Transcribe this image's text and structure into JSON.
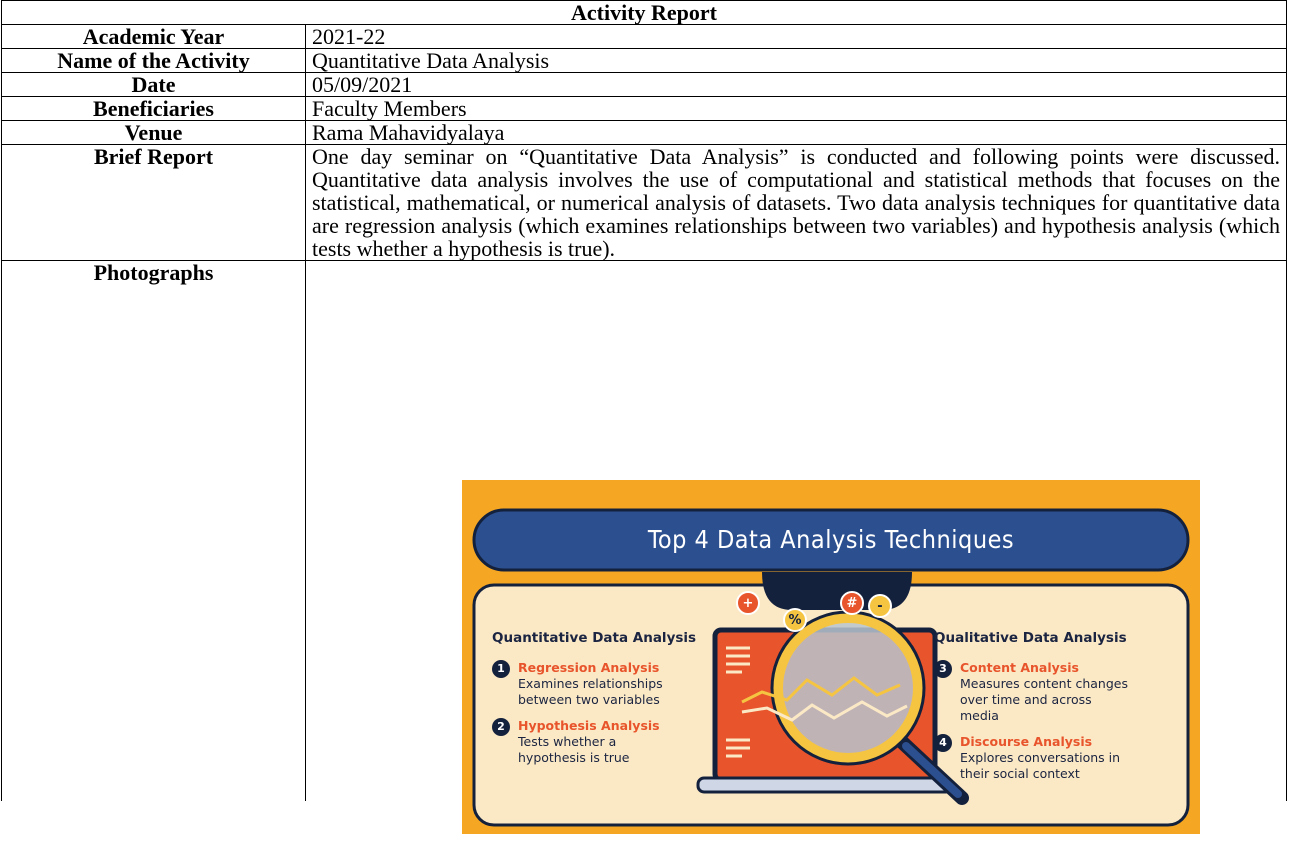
{
  "document": {
    "title": "Activity Report",
    "rows": [
      {
        "label": "Academic Year",
        "value": "2021-22"
      },
      {
        "label": "Name of the Activity",
        "value": "Quantitative Data Analysis"
      },
      {
        "label": "Date",
        "value": "05/09/2021"
      },
      {
        "label": "Beneficiaries",
        "value": "Faculty Members"
      },
      {
        "label": "Venue",
        "value": "Rama Mahavidyalaya"
      },
      {
        "label": "Brief Report",
        "value": "One day seminar on “Quantitative Data Analysis” is conducted and following points were discussed. Quantitative data analysis involves the use of computational and statistical methods that focuses on the statistical, mathematical, or numerical analysis of datasets. Two data analysis techniques for quantitative data are regression analysis (which examines relationships between two variables) and hypothesis analysis (which tests whether a hypothesis is true)."
      }
    ],
    "photographs_label": "Photographs",
    "infographic": {
      "title": "Top 4 Data Analysis Techniques",
      "icons": [
        "+",
        "%",
        "#",
        "-"
      ],
      "left": {
        "heading": "Quantitative Data Analysis",
        "items": [
          {
            "number": "1",
            "title": "Regression Analysis",
            "text": "Examines relationships between two variables"
          },
          {
            "number": "2",
            "title": "Hypothesis Analysis",
            "text": "Tests whether a hypothesis is true"
          }
        ]
      },
      "right": {
        "heading": "Qualitative Data Analysis",
        "items": [
          {
            "number": "3",
            "title": "Content Analysis",
            "text": "Measures content changes over time and across media"
          },
          {
            "number": "4",
            "title": "Discourse Analysis",
            "text": "Explores conversations in their social context"
          }
        ]
      }
    }
  }
}
